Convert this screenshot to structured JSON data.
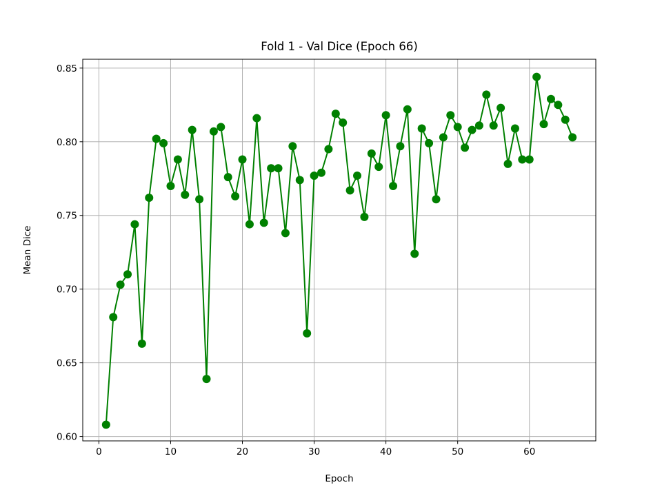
{
  "chart_data": {
    "type": "line",
    "title": "Fold 1 - Val Dice (Epoch 66)",
    "xlabel": "Epoch",
    "ylabel": "Mean Dice",
    "xlim": [
      -2.25,
      69.25
    ],
    "ylim": [
      0.597,
      0.856
    ],
    "xticks": [
      0,
      10,
      20,
      30,
      40,
      50,
      60
    ],
    "yticks": [
      0.6,
      0.65,
      0.7,
      0.75,
      0.8,
      0.85
    ],
    "xtick_labels": [
      "0",
      "10",
      "20",
      "30",
      "40",
      "50",
      "60"
    ],
    "ytick_labels": [
      "0.60",
      "0.65",
      "0.70",
      "0.75",
      "0.80",
      "0.85"
    ],
    "grid": true,
    "color": "#008000",
    "series": [
      {
        "x": [
          1,
          2,
          3,
          4,
          5,
          6,
          7,
          8,
          9,
          10,
          11,
          12,
          13,
          14,
          15,
          16,
          17,
          18,
          19,
          20,
          21,
          22,
          23,
          24,
          25,
          26,
          27,
          28,
          29,
          30,
          31,
          32,
          33,
          34,
          35,
          36,
          37,
          38,
          39,
          40,
          41,
          42,
          43,
          44,
          45,
          46,
          47,
          48,
          49,
          50,
          51,
          52,
          53,
          54,
          55,
          56,
          57,
          58,
          59,
          60,
          61,
          62,
          63,
          64,
          65,
          66
        ],
        "values": [
          0.608,
          0.681,
          0.703,
          0.71,
          0.744,
          0.663,
          0.762,
          0.802,
          0.799,
          0.77,
          0.788,
          0.764,
          0.808,
          0.761,
          0.639,
          0.807,
          0.81,
          0.776,
          0.763,
          0.788,
          0.744,
          0.816,
          0.745,
          0.782,
          0.782,
          0.738,
          0.797,
          0.774,
          0.67,
          0.777,
          0.779,
          0.795,
          0.819,
          0.813,
          0.767,
          0.777,
          0.749,
          0.792,
          0.783,
          0.818,
          0.77,
          0.797,
          0.822,
          0.724,
          0.809,
          0.799,
          0.761,
          0.803,
          0.818,
          0.81,
          0.796,
          0.808,
          0.811,
          0.832,
          0.811,
          0.823,
          0.785,
          0.809,
          0.788,
          0.788,
          0.844,
          0.812,
          0.829,
          0.825,
          0.815,
          0.803
        ]
      }
    ]
  }
}
